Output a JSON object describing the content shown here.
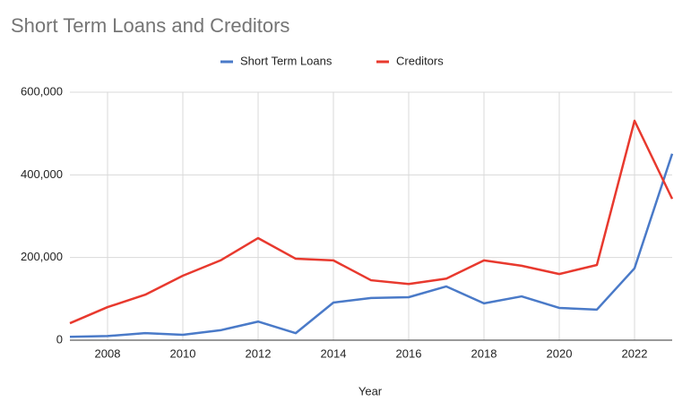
{
  "chart_data": {
    "type": "line",
    "title": "Short Term Loans and Creditors",
    "x_label": "Year",
    "x": [
      2007,
      2008,
      2009,
      2010,
      2011,
      2012,
      2013,
      2014,
      2015,
      2016,
      2017,
      2018,
      2019,
      2020,
      2021,
      2022,
      2023
    ],
    "series": [
      {
        "name": "Short Term Loans",
        "color": "#4a7ac8",
        "values": [
          8000,
          10000,
          17000,
          13000,
          24000,
          45000,
          17000,
          91000,
          102000,
          104000,
          130000,
          89000,
          106000,
          78000,
          74000,
          174000,
          451000
        ]
      },
      {
        "name": "Creditors",
        "color": "#e8392e",
        "values": [
          41000,
          80000,
          110000,
          156000,
          193000,
          247000,
          197000,
          193000,
          145000,
          136000,
          149000,
          193000,
          180000,
          160000,
          182000,
          531000,
          342000
        ]
      }
    ],
    "xlim": [
      2007,
      2023
    ],
    "xticks": [
      2008,
      2010,
      2012,
      2014,
      2016,
      2018,
      2020,
      2022
    ],
    "ylim": [
      0,
      600000
    ],
    "yticks": [
      0,
      {
        "value": 200000,
        "label": "200,000"
      },
      {
        "value": 400000,
        "label": "400,000"
      },
      {
        "value": 600000,
        "label": "600,000"
      }
    ],
    "grid": true
  }
}
